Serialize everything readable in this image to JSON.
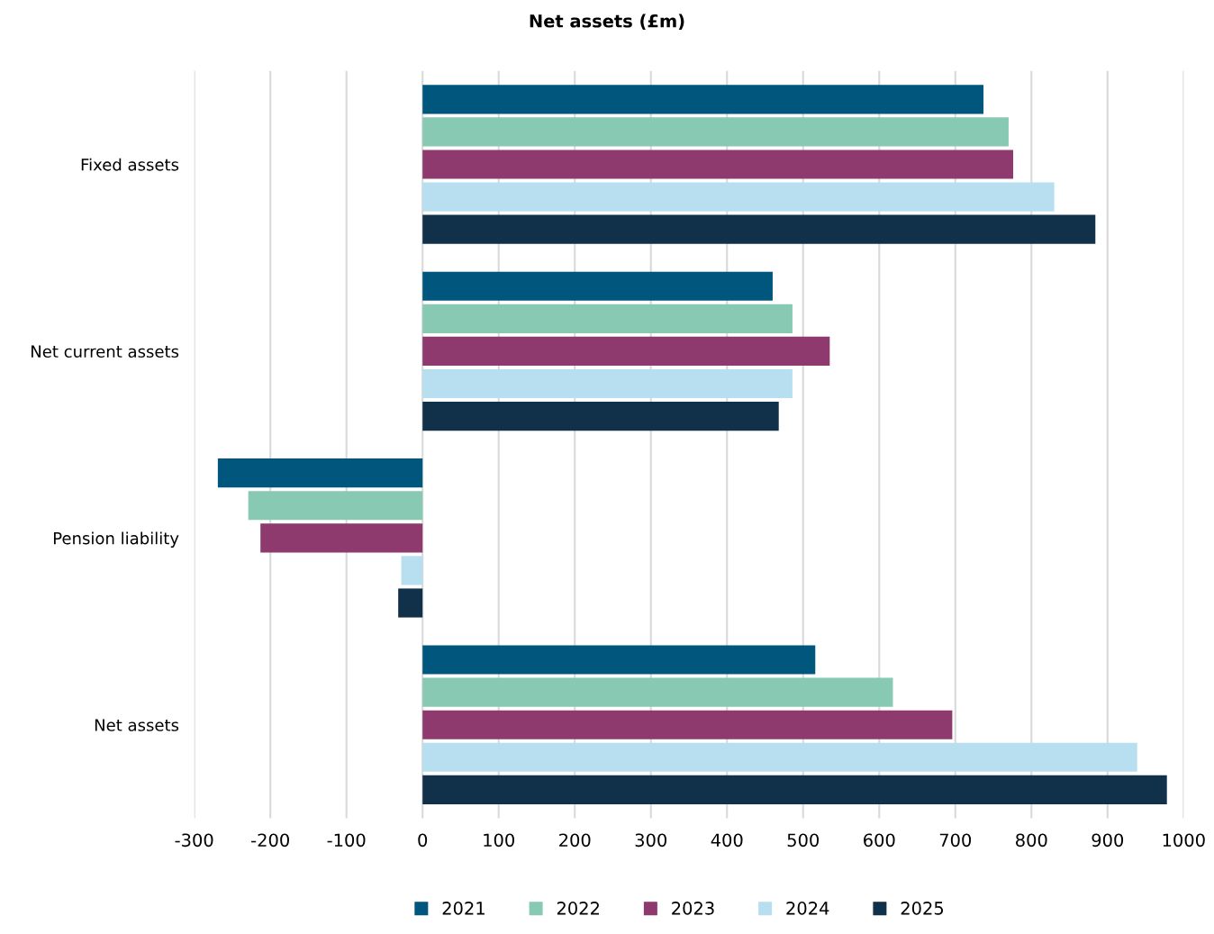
{
  "chart_data": {
    "type": "bar",
    "orientation": "horizontal",
    "title": "Net assets (£m)",
    "categories": [
      "Fixed assets",
      "Net current assets",
      "Pension liability",
      "Net assets"
    ],
    "series": [
      {
        "name": "2021",
        "color": "#00567d",
        "values": [
          737,
          460,
          -269,
          516
        ]
      },
      {
        "name": "2022",
        "color": "#88c9b4",
        "values": [
          770,
          486,
          -229,
          618
        ]
      },
      {
        "name": "2023",
        "color": "#8e3a6e",
        "values": [
          776,
          535,
          -213,
          696
        ]
      },
      {
        "name": "2024",
        "color": "#b7dff0",
        "values": [
          830,
          486,
          -28,
          939
        ]
      },
      {
        "name": "2025",
        "color": "#11304a",
        "values": [
          884,
          468,
          -32,
          978
        ]
      }
    ],
    "xlim": [
      -300,
      1000
    ],
    "xticks": [
      -300,
      -200,
      -100,
      0,
      100,
      200,
      300,
      400,
      500,
      600,
      700,
      800,
      900,
      1000
    ],
    "grid": "x",
    "legend": "bottom"
  }
}
